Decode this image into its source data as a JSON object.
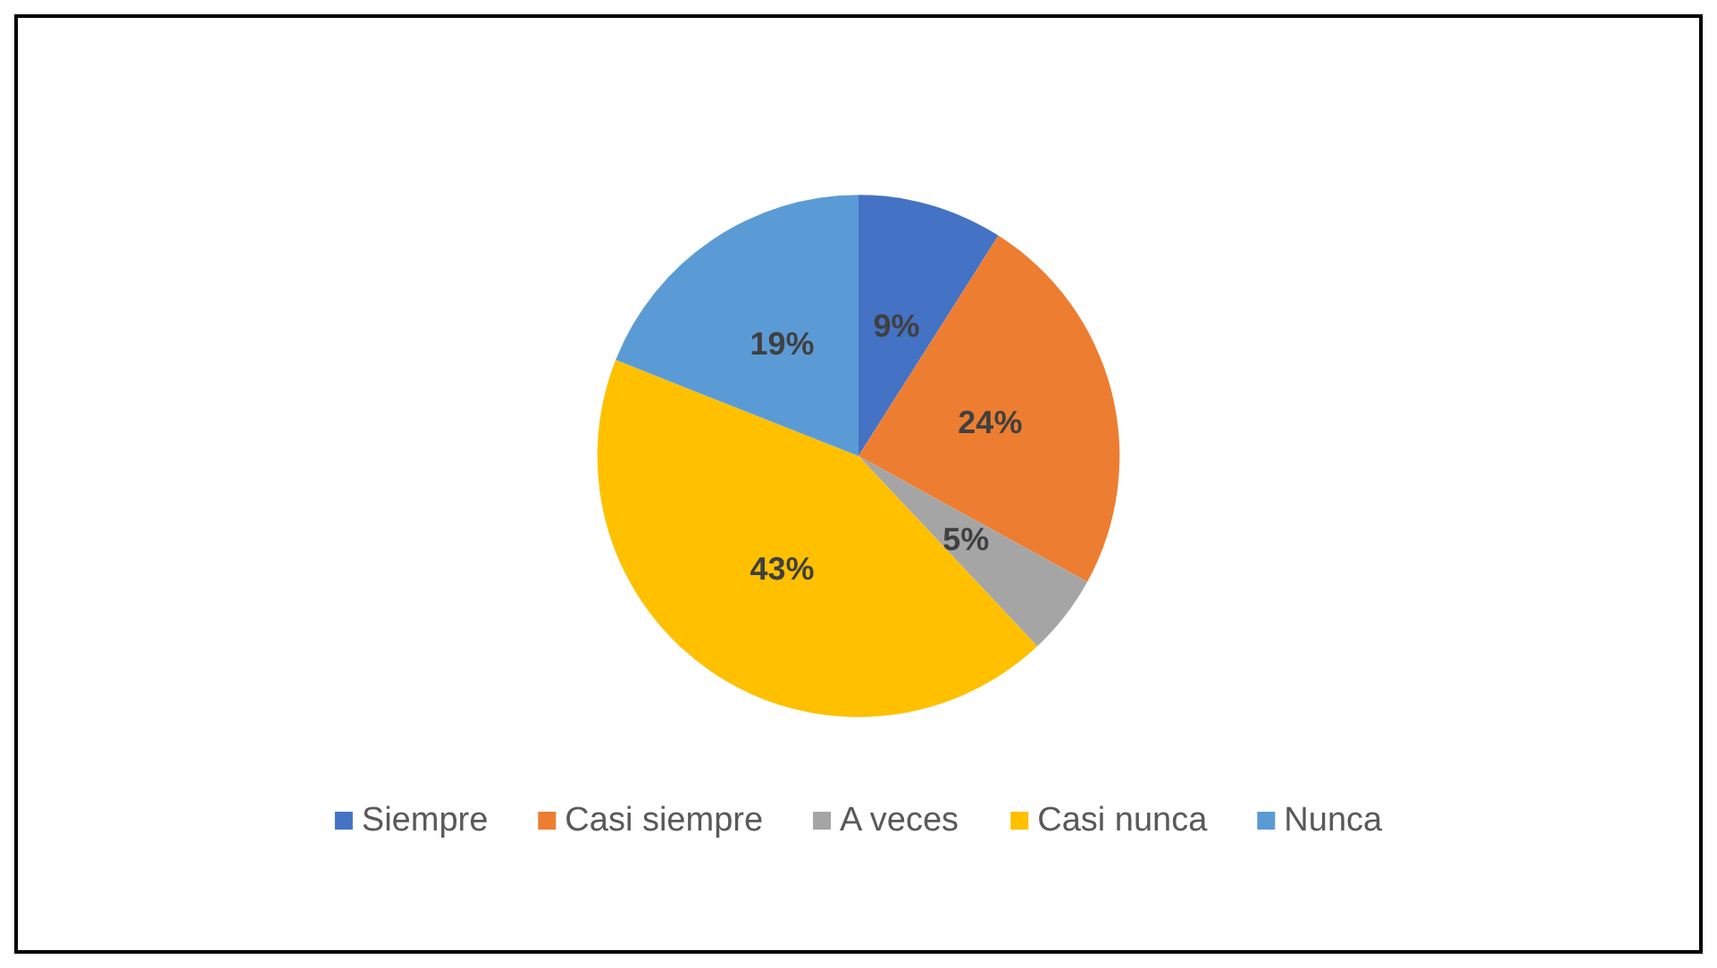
{
  "chart_data": {
    "type": "pie",
    "categories": [
      "Siempre",
      "Casi siempre",
      "A veces",
      "Casi nunca",
      "Nunca"
    ],
    "values": [
      9,
      24,
      5,
      43,
      19
    ],
    "colors": [
      "#4472c4",
      "#ed7d31",
      "#a5a5a5",
      "#ffc000",
      "#5b9bd5"
    ],
    "value_labels": [
      "9%",
      "24%",
      "5%",
      "43%",
      "19%"
    ],
    "legend": "bottom"
  }
}
